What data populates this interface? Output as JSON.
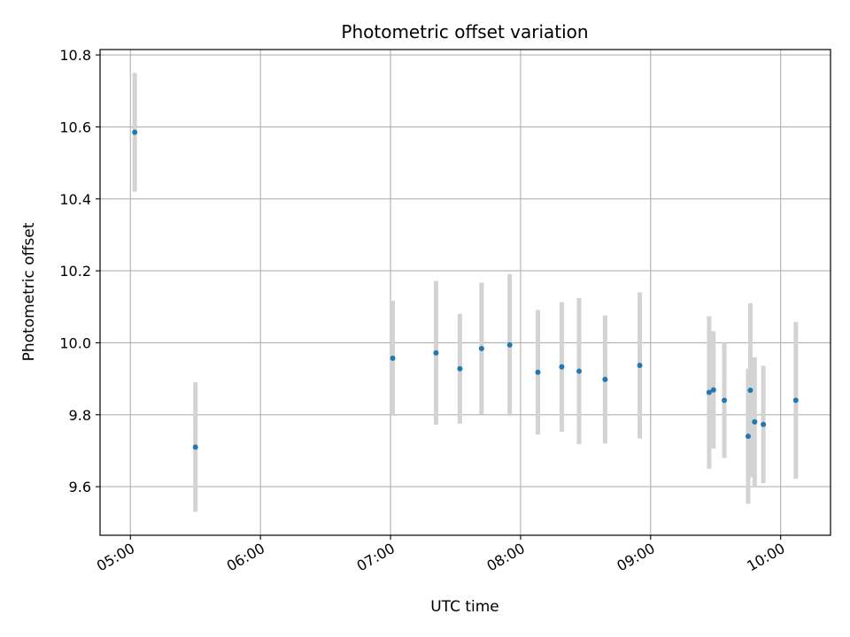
{
  "chart_data": {
    "type": "scatter",
    "title": "Photometric offset variation",
    "xlabel": "UTC time",
    "ylabel": "Photometric offset",
    "x_ticks": [
      "05:00",
      "06:00",
      "07:00",
      "08:00",
      "09:00",
      "10:00"
    ],
    "y_ticks": [
      "9.6",
      "9.8",
      "10.0",
      "10.2",
      "10.4",
      "10.6",
      "10.8"
    ],
    "xlim": [
      "04:46",
      "10:23"
    ],
    "ylim": [
      9.465,
      10.815
    ],
    "grid": true,
    "colors": {
      "points": "#1f77b4",
      "errorbars": "#d3d3d3",
      "grid": "#b0b0b0"
    },
    "points": [
      {
        "t": "05:02",
        "y": 10.585,
        "err": 0.165
      },
      {
        "t": "05:30",
        "y": 9.71,
        "err": 0.18
      },
      {
        "t": "07:01",
        "y": 9.957,
        "err": 0.16
      },
      {
        "t": "07:21",
        "y": 9.972,
        "err": 0.2
      },
      {
        "t": "07:32",
        "y": 9.928,
        "err": 0.153
      },
      {
        "t": "07:42",
        "y": 9.984,
        "err": 0.183
      },
      {
        "t": "07:55",
        "y": 9.994,
        "err": 0.197
      },
      {
        "t": "08:08",
        "y": 9.918,
        "err": 0.173
      },
      {
        "t": "08:19",
        "y": 9.933,
        "err": 0.18
      },
      {
        "t": "08:27",
        "y": 9.921,
        "err": 0.203
      },
      {
        "t": "08:39",
        "y": 9.898,
        "err": 0.178
      },
      {
        "t": "08:55",
        "y": 9.937,
        "err": 0.203
      },
      {
        "t": "09:27",
        "y": 9.862,
        "err": 0.212
      },
      {
        "t": "09:29",
        "y": 9.869,
        "err": 0.163
      },
      {
        "t": "09:34",
        "y": 9.84,
        "err": 0.16
      },
      {
        "t": "09:45",
        "y": 9.74,
        "err": 0.188
      },
      {
        "t": "09:46",
        "y": 9.868,
        "err": 0.242
      },
      {
        "t": "09:48",
        "y": 9.78,
        "err": 0.18
      },
      {
        "t": "09:52",
        "y": 9.773,
        "err": 0.163
      },
      {
        "t": "10:07",
        "y": 9.84,
        "err": 0.218
      }
    ]
  }
}
